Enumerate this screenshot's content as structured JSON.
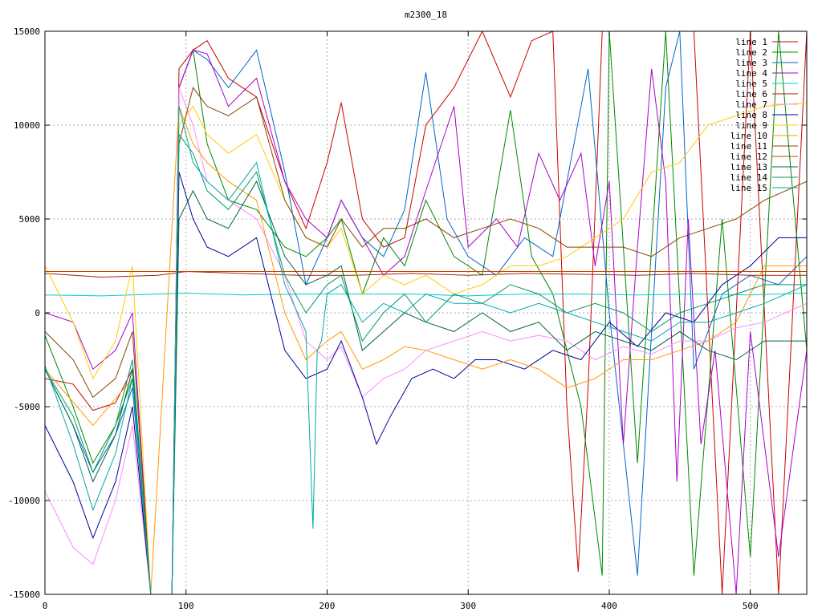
{
  "chart_data": {
    "type": "line",
    "title": "m2300_18",
    "xlabel": "",
    "ylabel": "",
    "xlim": [
      0,
      540
    ],
    "ylim": [
      -15000,
      15000
    ],
    "x_ticks": [
      0,
      100,
      200,
      300,
      400,
      500
    ],
    "y_ticks": [
      -15000,
      -10000,
      -5000,
      0,
      5000,
      10000,
      15000
    ],
    "grid": true,
    "legend": "top-right",
    "series": [
      {
        "name": "line 1",
        "color": "#cc0000",
        "x": [
          0,
          20,
          34,
          50,
          62,
          75,
          90,
          95,
          105,
          115,
          130,
          150,
          170,
          185,
          200,
          210,
          225,
          240,
          255,
          270,
          290,
          310,
          330,
          345,
          360,
          370,
          378,
          385,
          395,
          400,
          420,
          440,
          460,
          480,
          500,
          520,
          540
        ],
        "y": [
          -3500,
          -3800,
          -5200,
          -4800,
          -3000,
          -15000,
          -15000,
          13000,
          14000,
          14500,
          12500,
          11500,
          7000,
          4500,
          8000,
          11200,
          5000,
          3500,
          4000,
          10000,
          12000,
          15000,
          11500,
          14500,
          15000,
          -5000,
          -13800,
          -4000,
          15000,
          15000,
          15000,
          15000,
          15000,
          -15000,
          15000,
          -15000,
          15000
        ]
      },
      {
        "name": "line 2",
        "color": "#008800",
        "x": [
          0,
          20,
          34,
          50,
          62,
          75,
          90,
          95,
          105,
          115,
          130,
          150,
          170,
          185,
          200,
          210,
          225,
          240,
          255,
          270,
          290,
          310,
          330,
          345,
          360,
          380,
          395,
          400,
          420,
          440,
          460,
          480,
          500,
          520,
          540
        ],
        "y": [
          -1200,
          -5000,
          -8000,
          -6000,
          -3500,
          -15000,
          -15000,
          12000,
          14000,
          9000,
          6000,
          5500,
          3500,
          3000,
          4000,
          5000,
          1000,
          4000,
          2500,
          6000,
          3000,
          2000,
          10800,
          3000,
          1000,
          -5000,
          -14000,
          15000,
          -8000,
          15000,
          -14000,
          5000,
          -13000,
          15000,
          -2000
        ]
      },
      {
        "name": "line 3",
        "color": "#0066cc",
        "x": [
          0,
          20,
          34,
          50,
          62,
          75,
          90,
          95,
          105,
          115,
          130,
          150,
          170,
          185,
          200,
          210,
          225,
          240,
          255,
          270,
          285,
          300,
          320,
          340,
          360,
          385,
          400,
          420,
          440,
          450,
          460,
          480,
          500,
          520,
          540
        ],
        "y": [
          -3000,
          -6000,
          -8500,
          -6500,
          -4000,
          -15000,
          -15000,
          12000,
          14000,
          13500,
          12000,
          14000,
          7500,
          1500,
          4000,
          6000,
          4000,
          3000,
          5500,
          12800,
          5000,
          3000,
          2000,
          4000,
          3000,
          13000,
          0,
          -14000,
          12000,
          15000,
          -3000,
          1000,
          2000,
          1500,
          3000
        ]
      },
      {
        "name": "line 4",
        "color": "#aa00cc",
        "x": [
          0,
          20,
          34,
          50,
          62,
          75,
          90,
          95,
          105,
          115,
          130,
          150,
          170,
          185,
          200,
          210,
          225,
          240,
          255,
          270,
          290,
          300,
          320,
          335,
          350,
          365,
          380,
          390,
          400,
          410,
          420,
          430,
          440,
          448,
          456,
          465,
          475,
          490,
          500,
          520,
          540
        ],
        "y": [
          0,
          -500,
          -3000,
          -2000,
          0,
          -15000,
          -15000,
          12000,
          14000,
          13800,
          11000,
          12500,
          7000,
          5000,
          4000,
          6000,
          4000,
          2000,
          3000,
          6500,
          11000,
          3500,
          5000,
          3500,
          8500,
          6000,
          8500,
          2500,
          7000,
          -7000,
          3500,
          13000,
          7000,
          -9000,
          5000,
          -7000,
          -2000,
          -15000,
          -1000,
          -13000,
          -2000
        ]
      },
      {
        "name": "line 5",
        "color": "#00cccc",
        "x": [
          0,
          40,
          80,
          100,
          140,
          180,
          220,
          260,
          300,
          340,
          380,
          420,
          460,
          500,
          540
        ],
        "y": [
          950,
          900,
          1000,
          1050,
          950,
          1000,
          1000,
          1000,
          900,
          1000,
          1000,
          950,
          1000,
          950,
          1050
        ]
      },
      {
        "name": "line 6",
        "color": "#aa2200",
        "x": [
          0,
          40,
          80,
          100,
          140,
          180,
          220,
          260,
          300,
          340,
          380,
          420,
          460,
          500,
          540
        ],
        "y": [
          2100,
          1900,
          2000,
          2200,
          2100,
          2000,
          2000,
          2100,
          2000,
          2100,
          2050,
          2000,
          2100,
          2000,
          2000
        ]
      },
      {
        "name": "line 7",
        "color": "#ff88ff",
        "x": [
          0,
          20,
          34,
          50,
          62,
          75,
          90,
          95,
          105,
          115,
          130,
          150,
          170,
          185,
          200,
          210,
          225,
          240,
          255,
          270,
          290,
          310,
          330,
          350,
          370,
          390,
          410,
          430,
          450,
          470,
          490,
          510,
          540
        ],
        "y": [
          -9500,
          -12500,
          -13400,
          -10000,
          -6000,
          -15000,
          -15000,
          12000,
          10000,
          7000,
          6000,
          5000,
          2000,
          -1500,
          -2500,
          -1800,
          -4500,
          -3500,
          -3000,
          -2000,
          -1500,
          -1000,
          -1500,
          -1200,
          -1500,
          -2500,
          -1800,
          -2200,
          -1500,
          -1500,
          -800,
          -500,
          500
        ]
      },
      {
        "name": "line 8",
        "color": "#000099",
        "x": [
          0,
          20,
          34,
          50,
          62,
          75,
          90,
          95,
          105,
          115,
          130,
          150,
          170,
          185,
          200,
          210,
          225,
          235,
          245,
          260,
          275,
          290,
          305,
          320,
          340,
          360,
          380,
          400,
          420,
          440,
          460,
          480,
          500,
          520,
          540
        ],
        "y": [
          -6000,
          -9000,
          -12000,
          -9000,
          -5000,
          -15000,
          -15000,
          7500,
          5000,
          3500,
          3000,
          4000,
          -2000,
          -3500,
          -3000,
          -1500,
          -4500,
          -7000,
          -5500,
          -3500,
          -3000,
          -3500,
          -2500,
          -2500,
          -3000,
          -2000,
          -2500,
          -500,
          -1800,
          0,
          -500,
          1500,
          2500,
          4000,
          4000
        ]
      },
      {
        "name": "line 9",
        "color": "#ffcc00",
        "x": [
          0,
          20,
          34,
          50,
          62,
          75,
          90,
          95,
          105,
          115,
          130,
          150,
          170,
          185,
          200,
          210,
          225,
          240,
          255,
          270,
          290,
          310,
          330,
          350,
          370,
          390,
          410,
          430,
          450,
          470,
          490,
          510,
          540
        ],
        "y": [
          2500,
          -500,
          -3500,
          -1500,
          2500,
          -15000,
          -15000,
          10000,
          11000,
          9500,
          8500,
          9500,
          6000,
          4000,
          3500,
          4500,
          1000,
          2000,
          1500,
          2000,
          1000,
          1500,
          2500,
          2500,
          3000,
          4000,
          5000,
          7500,
          8000,
          10000,
          10500,
          11000,
          11200
        ]
      },
      {
        "name": "line 10",
        "color": "#ff9900",
        "x": [
          0,
          34,
          62,
          75,
          95,
          105,
          115,
          130,
          150,
          170,
          185,
          200,
          210,
          225,
          240,
          255,
          270,
          290,
          310,
          330,
          350,
          370,
          390,
          410,
          430,
          450,
          470,
          490,
          510,
          540
        ],
        "y": [
          -3000,
          -6000,
          -3500,
          -15000,
          11000,
          9000,
          8000,
          7000,
          6000,
          0,
          -2500,
          -1500,
          -1000,
          -3000,
          -2500,
          -1800,
          -2000,
          -2500,
          -3000,
          -2500,
          -3000,
          -4000,
          -3500,
          -2500,
          -2500,
          -2000,
          -1500,
          -500,
          2500,
          2500
        ]
      },
      {
        "name": "line 11",
        "color": "#884400",
        "x": [
          0,
          20,
          34,
          50,
          62,
          75,
          90,
          95,
          105,
          115,
          130,
          150,
          170,
          185,
          200,
          210,
          225,
          240,
          255,
          270,
          290,
          310,
          330,
          350,
          370,
          390,
          410,
          430,
          450,
          470,
          490,
          510,
          540
        ],
        "y": [
          -1000,
          -2500,
          -4500,
          -3500,
          -1000,
          -15000,
          -15000,
          9000,
          12000,
          11000,
          10500,
          11500,
          6000,
          4000,
          3500,
          5000,
          3500,
          4500,
          4500,
          5000,
          4000,
          4500,
          5000,
          4500,
          3500,
          3500,
          3500,
          3000,
          4000,
          4500,
          5000,
          6000,
          7000
        ]
      },
      {
        "name": "line 12",
        "color": "#cc4400",
        "x": [
          0,
          40,
          80,
          100,
          140,
          180,
          220,
          260,
          300,
          340,
          380,
          420,
          460,
          500,
          540
        ],
        "y": [
          2200,
          2200,
          2200,
          2200,
          2200,
          2200,
          2200,
          2200,
          2200,
          2200,
          2200,
          2200,
          2200,
          2200,
          2200
        ]
      },
      {
        "name": "line 13",
        "color": "#006644",
        "x": [
          0,
          20,
          34,
          50,
          62,
          75,
          90,
          95,
          105,
          115,
          130,
          150,
          170,
          185,
          200,
          210,
          225,
          240,
          255,
          270,
          290,
          310,
          330,
          350,
          370,
          390,
          410,
          430,
          450,
          470,
          490,
          510,
          540
        ],
        "y": [
          -3000,
          -6000,
          -9000,
          -6500,
          -3000,
          -15000,
          -15000,
          5000,
          6500,
          5000,
          4500,
          7000,
          3000,
          1500,
          2000,
          2500,
          -2000,
          -1000,
          0,
          -500,
          -1000,
          0,
          -1000,
          -500,
          -2000,
          -1000,
          -1500,
          -2000,
          -1000,
          -2000,
          -2500,
          -1500,
          -1500
        ]
      },
      {
        "name": "line 14",
        "color": "#009966",
        "x": [
          0,
          20,
          34,
          50,
          62,
          75,
          90,
          95,
          105,
          115,
          130,
          150,
          170,
          185,
          200,
          210,
          225,
          240,
          255,
          270,
          290,
          310,
          330,
          350,
          370,
          390,
          410,
          430,
          450,
          470,
          490,
          510,
          540
        ],
        "y": [
          -3000,
          -5500,
          -8500,
          -6000,
          -2500,
          -15000,
          -15000,
          9500,
          8500,
          6500,
          5500,
          7500,
          2000,
          0,
          1500,
          2000,
          -1500,
          0,
          1000,
          -500,
          1000,
          500,
          1500,
          1000,
          0,
          500,
          0,
          -1000,
          0,
          500,
          1000,
          1500,
          1500
        ]
      },
      {
        "name": "line 15",
        "color": "#00aaaa",
        "x": [
          0,
          20,
          34,
          50,
          62,
          75,
          90,
          95,
          105,
          115,
          130,
          150,
          170,
          185,
          190,
          193,
          196,
          200,
          210,
          225,
          240,
          255,
          270,
          290,
          310,
          330,
          350,
          370,
          390,
          410,
          430,
          450,
          470,
          490,
          510,
          540
        ],
        "y": [
          -2800,
          -7000,
          -10500,
          -7500,
          -3500,
          -15000,
          -15000,
          11000,
          8000,
          7000,
          6000,
          8000,
          1500,
          -1000,
          -11500,
          -2000,
          -1500,
          1000,
          1500,
          -500,
          500,
          0,
          1000,
          500,
          500,
          0,
          500,
          0,
          -500,
          -1000,
          -1500,
          -500,
          -500,
          0,
          500,
          1500
        ]
      }
    ]
  }
}
